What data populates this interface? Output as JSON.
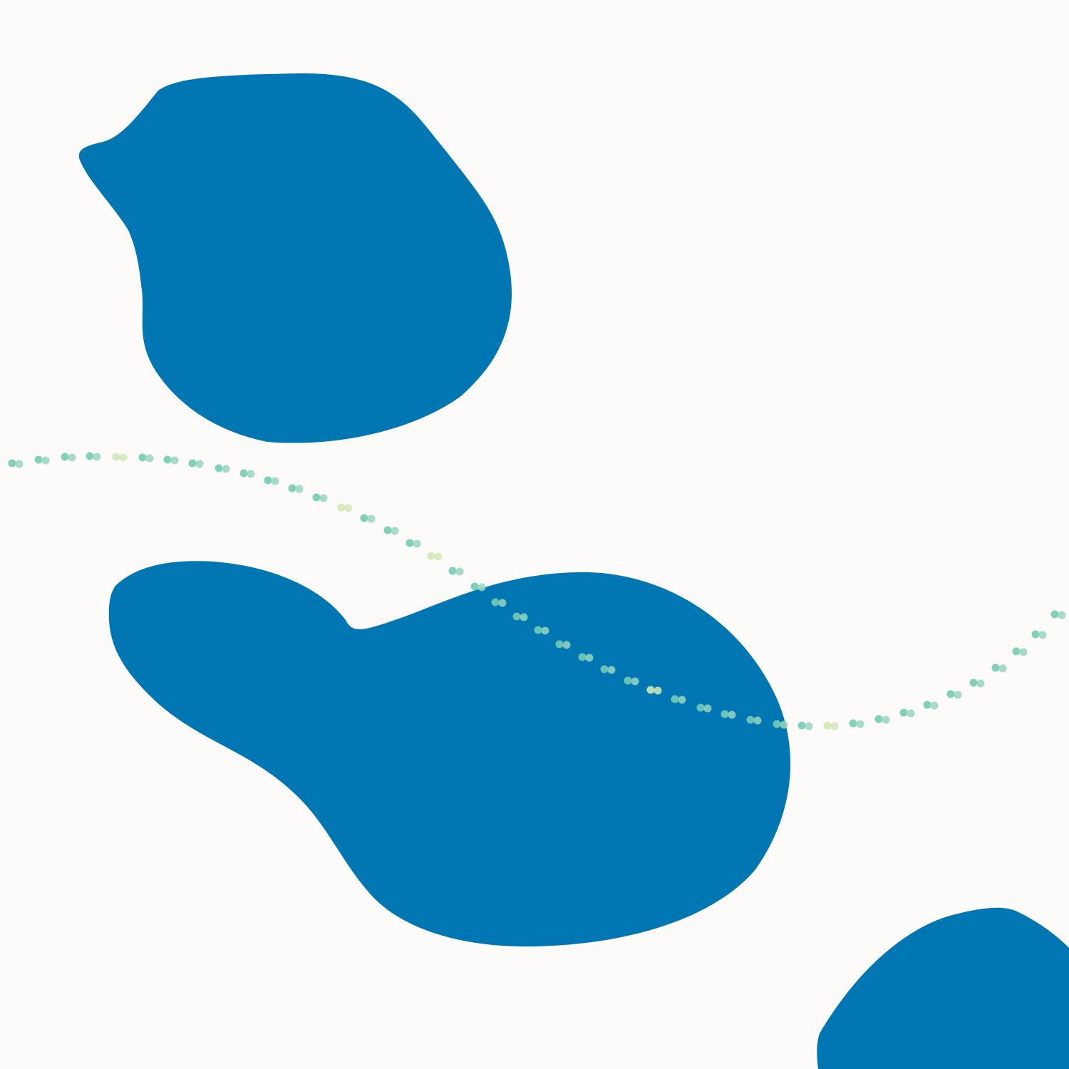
{
  "canvas": {
    "background": "#fdfafa"
  },
  "colors": {
    "blob": "#0077b2",
    "dot_primary": "#72cbb5",
    "dot_secondary": "#96d5bf",
    "dot_highlight": "#d2e8b5"
  },
  "shapes": [
    {
      "name": "blob-top-left",
      "kind": "organic-blob"
    },
    {
      "name": "blob-center",
      "kind": "organic-blob"
    },
    {
      "name": "blob-bottom-right",
      "kind": "organic-blob"
    }
  ],
  "decoration": {
    "name": "dotted-wave",
    "style": "double-dot trail",
    "pairs": 45
  }
}
